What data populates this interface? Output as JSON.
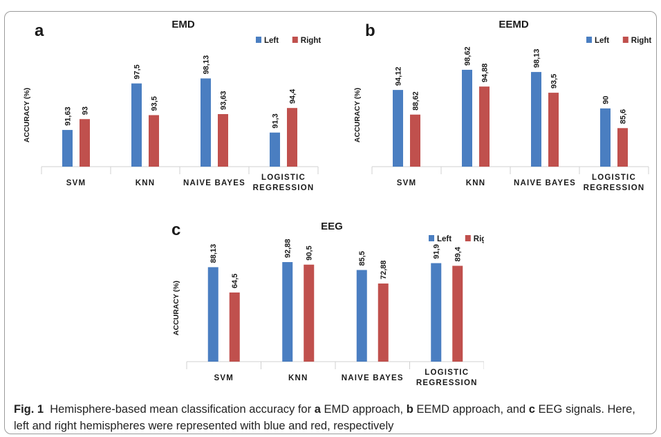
{
  "colors": {
    "left": "#4a7ec1",
    "right": "#c0504d",
    "axis": "#d0d0d0",
    "text": "#1a1a1a"
  },
  "chart_data": [
    {
      "type": "bar",
      "panel_label": "a",
      "title": "EMD",
      "ylabel": "ACCURACY (%)",
      "categories": [
        "SVM",
        "KNN",
        "NAIVE BAYES",
        "LOGISTIC REGRESSION"
      ],
      "series": [
        {
          "name": "Left",
          "values": [
            91.63,
            97.5,
            98.13,
            91.3
          ],
          "labels": [
            "91,63",
            "97,5",
            "98,13",
            "91,3"
          ]
        },
        {
          "name": "Right",
          "values": [
            93,
            93.5,
            93.63,
            94.4
          ],
          "labels": [
            "93",
            "93,5",
            "93,63",
            "94,4"
          ]
        }
      ],
      "ylim": [
        87,
        100
      ],
      "grid": false,
      "legend_position": "top-right"
    },
    {
      "type": "bar",
      "panel_label": "b",
      "title": "EEMD",
      "ylabel": "ACCURACY (%)",
      "categories": [
        "SVM",
        "KNN",
        "NAIVE BAYES",
        "LOGISTIC REGRESSION"
      ],
      "series": [
        {
          "name": "Left",
          "values": [
            94.12,
            98.62,
            98.13,
            90
          ],
          "labels": [
            "94,12",
            "98,62",
            "98,13",
            "90"
          ]
        },
        {
          "name": "Right",
          "values": [
            88.62,
            94.88,
            93.5,
            85.6
          ],
          "labels": [
            "88,62",
            "94,88",
            "93,5",
            "85,6"
          ]
        }
      ],
      "ylim": [
        77,
        100
      ],
      "grid": false,
      "legend_position": "top-right"
    },
    {
      "type": "bar",
      "panel_label": "c",
      "title": "EEG",
      "ylabel": "ACCURACY (%)",
      "categories": [
        "SVM",
        "KNN",
        "NAIVE BAYES",
        "LOGISTIC REGRESSION"
      ],
      "series": [
        {
          "name": "Left",
          "values": [
            88.13,
            92.88,
            85.5,
            91.9
          ],
          "labels": [
            "88,13",
            "92,88",
            "85,5",
            "91,9"
          ]
        },
        {
          "name": "Right",
          "values": [
            64.5,
            90.5,
            72.88,
            89.4
          ],
          "labels": [
            "64,5",
            "90,5",
            "72,88",
            "89,4"
          ]
        }
      ],
      "ylim": [
        0,
        100
      ],
      "grid": false,
      "legend_position": "top-right"
    }
  ],
  "caption": {
    "fig_label": "Fig. 1",
    "t1": "Hemisphere-based mean classification accuracy for",
    "a": "a",
    "t2": "EMD approach,",
    "b": "b",
    "t3": "EEMD approach, and",
    "c": "c",
    "t4": "EEG signals. Here, left and right hemispheres were represented with blue and red, respectively"
  }
}
